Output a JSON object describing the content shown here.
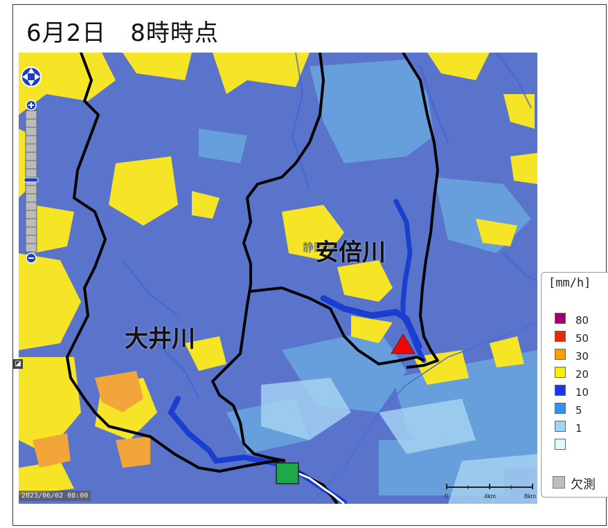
{
  "title": "6月2日　8時時点",
  "timestamp": "2023/06/02 08:00",
  "labels": {
    "oi_river": "大井川",
    "abe_river": "安倍川",
    "prefecture": "静岡県"
  },
  "scale_bar": {
    "ticks": [
      "0",
      "4km",
      "8km"
    ]
  },
  "legend": {
    "unit": "[mm/h]",
    "items": [
      {
        "value": "80",
        "color": "#a0006e"
      },
      {
        "value": "50",
        "color": "#e52b00"
      },
      {
        "value": "30",
        "color": "#f5a000"
      },
      {
        "value": "20",
        "color": "#f8f000"
      },
      {
        "value": "10",
        "color": "#1a36f0"
      },
      {
        "value": "5",
        "color": "#2d94f5"
      },
      {
        "value": "1",
        "color": "#9dd6f5"
      },
      {
        "value": "",
        "color": "#d8fbff"
      }
    ],
    "missing_label": "欠測",
    "missing_color": "#bdbdbd"
  },
  "markers": {
    "triangle_color": "#ff0000",
    "square_color": "#1fa84a"
  },
  "colors": {
    "river_line": "#1a3fd0",
    "basin_boundary": "#000000"
  }
}
